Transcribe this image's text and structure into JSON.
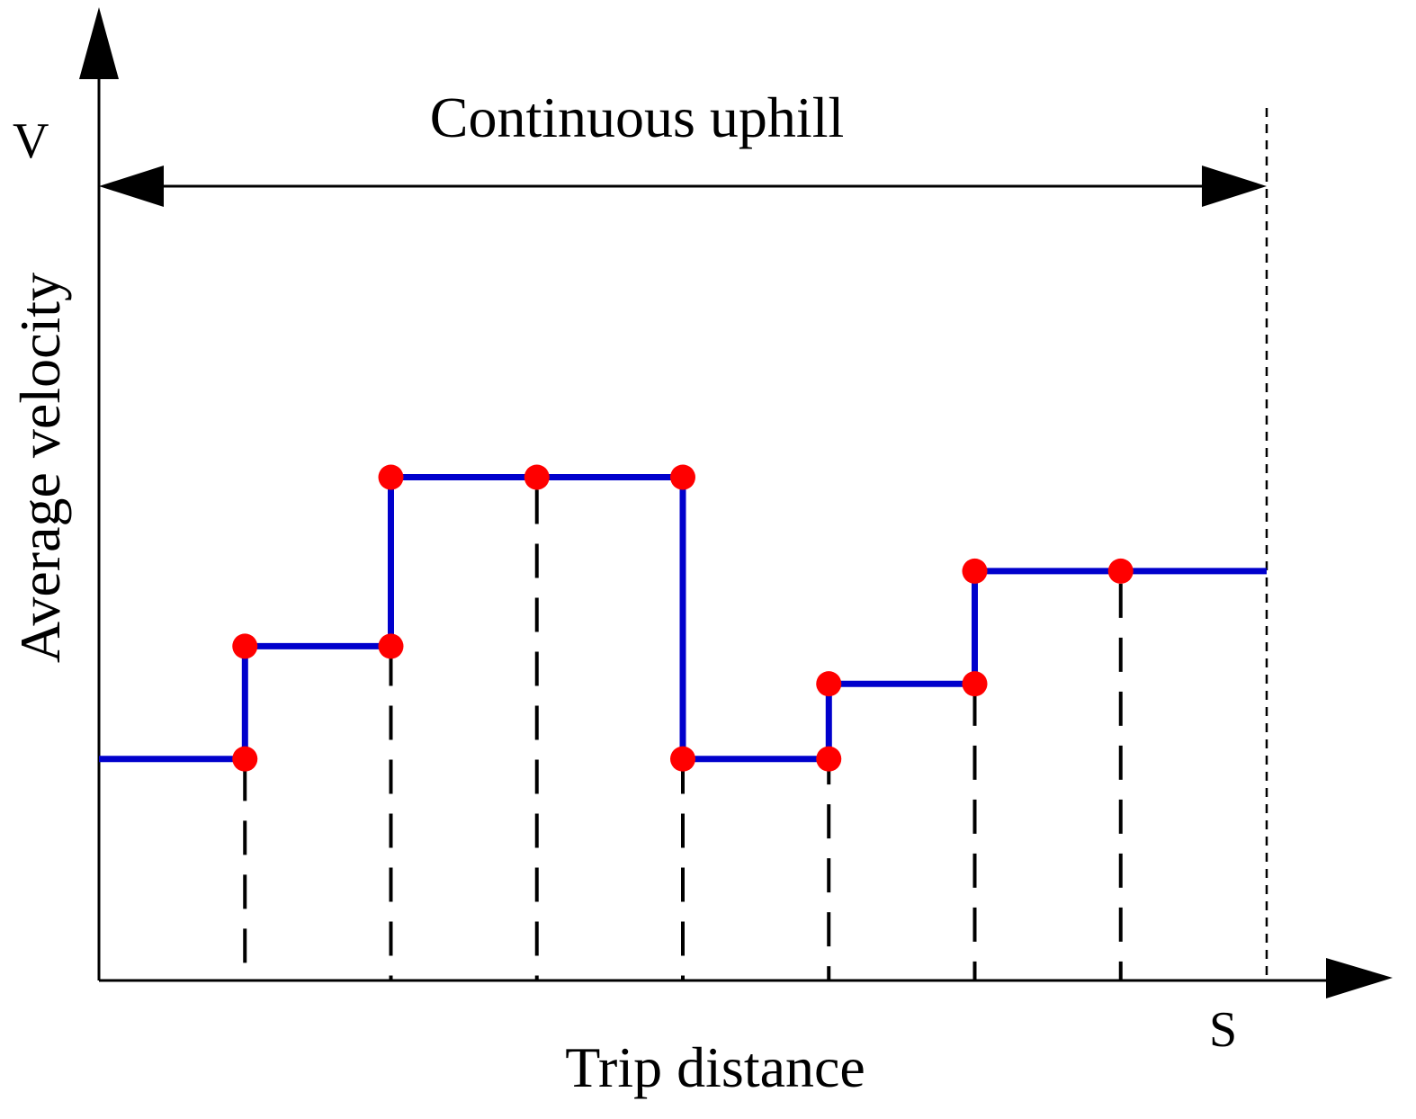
{
  "chart_data": {
    "type": "line",
    "step": true,
    "xlabel": "Trip distance",
    "ylabel": "Average velocity",
    "x_axis_symbol": "S",
    "y_axis_symbol": "V",
    "span_annotation": "Continuous uphill",
    "xlim": [
      0,
      100
    ],
    "ylim": [
      0,
      100
    ],
    "grid": false,
    "legend": "none",
    "series": [
      {
        "color": "#0000cc",
        "x": [
          0,
          12.5,
          25,
          37.5,
          50,
          62.5,
          75,
          87.5,
          100
        ],
        "y": [
          29.5,
          44.5,
          67,
          67,
          29.5,
          39.5,
          54.5,
          54.5,
          54.5
        ]
      }
    ],
    "breakpoints": {
      "color": "#ff0000",
      "points": [
        {
          "x": 12.5,
          "y": 29.5
        },
        {
          "x": 12.5,
          "y": 44.5
        },
        {
          "x": 25,
          "y": 44.5
        },
        {
          "x": 25,
          "y": 67
        },
        {
          "x": 37.5,
          "y": 67
        },
        {
          "x": 50,
          "y": 67
        },
        {
          "x": 50,
          "y": 29.5
        },
        {
          "x": 62.5,
          "y": 29.5
        },
        {
          "x": 62.5,
          "y": 39.5
        },
        {
          "x": 75,
          "y": 39.5
        },
        {
          "x": 75,
          "y": 54.5
        },
        {
          "x": 87.5,
          "y": 54.5
        }
      ]
    },
    "dropline_x": [
      12.5,
      25,
      37.5,
      50,
      62.5,
      75,
      87.5
    ],
    "end_marker_x": 100
  }
}
